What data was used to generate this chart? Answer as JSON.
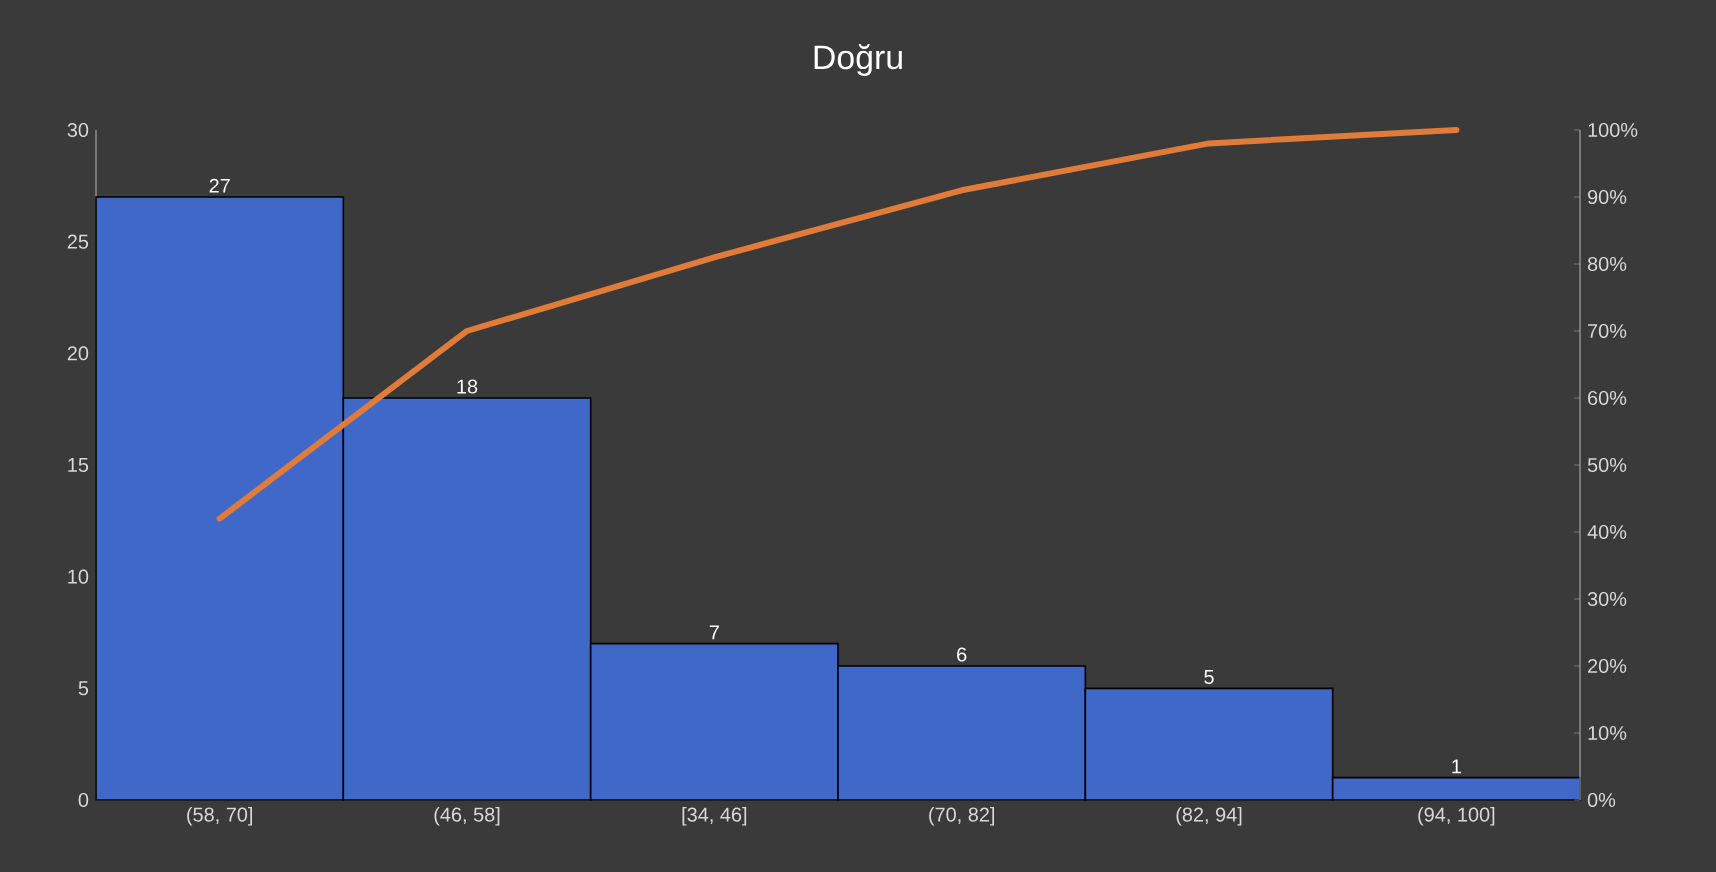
{
  "chart_data": {
    "type": "bar",
    "title": "Doğru",
    "categories": [
      "(58, 70]",
      "(46, 58]",
      "[34, 46]",
      "(70, 82]",
      "(82, 94]",
      "(94, 100]"
    ],
    "series": [
      {
        "color": "#3f68c9",
        "values": [
          27,
          18,
          7,
          6,
          5,
          1
        ],
        "value_labels": [
          "27",
          "18",
          "7",
          "6",
          "5",
          "1"
        ]
      },
      {
        "type": "line",
        "axis": "y2",
        "color": "#e07b39",
        "values": [
          42,
          70,
          81,
          91,
          98,
          100
        ]
      }
    ],
    "ylim": [
      0,
      30
    ],
    "yticks": [
      0,
      5,
      10,
      15,
      20,
      25,
      30
    ],
    "y2lim": [
      0,
      100
    ],
    "y2ticks": [
      {
        "value": 0,
        "label": "0%"
      },
      {
        "value": 10,
        "label": "10%"
      },
      {
        "value": 20,
        "label": "20%"
      },
      {
        "value": 30,
        "label": "30%"
      },
      {
        "value": 40,
        "label": "40%"
      },
      {
        "value": 50,
        "label": "50%"
      },
      {
        "value": 60,
        "label": "60%"
      },
      {
        "value": 70,
        "label": "70%"
      },
      {
        "value": 80,
        "label": "80%"
      },
      {
        "value": 90,
        "label": "90%"
      },
      {
        "value": 100,
        "label": "100%"
      }
    ]
  }
}
